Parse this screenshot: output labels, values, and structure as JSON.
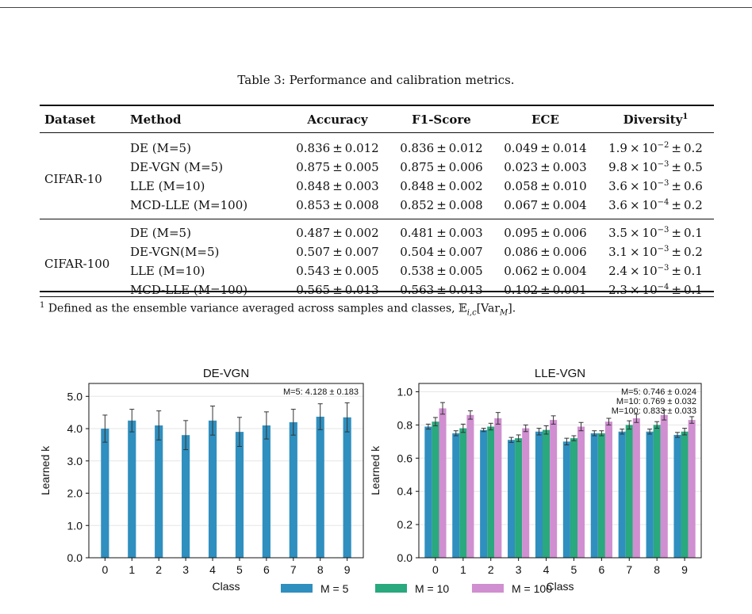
{
  "table": {
    "caption": "Table 3: Performance and calibration metrics.",
    "headers": [
      "Dataset",
      "Method",
      "Accuracy",
      "F1-Score",
      "ECE",
      "Diversity"
    ],
    "header_footnote_mark": "1",
    "groups": [
      {
        "dataset": "CIFAR-10",
        "rows": [
          {
            "method": "DE (M=5)",
            "acc": "0.836",
            "acc_sd": "0.012",
            "f1": "0.836",
            "f1_sd": "0.012",
            "ece": "0.049",
            "ece_sd": "0.014",
            "div_mant": "1.9",
            "div_exp": "−2",
            "div_sd": "0.2"
          },
          {
            "method": "DE-VGN (M=5)",
            "acc": "0.875",
            "acc_sd": "0.005",
            "f1": "0.875",
            "f1_sd": "0.006",
            "ece": "0.023",
            "ece_sd": "0.003",
            "div_mant": "9.8",
            "div_exp": "−3",
            "div_sd": "0.5"
          },
          {
            "method": "LLE (M=10)",
            "acc": "0.848",
            "acc_sd": "0.003",
            "f1": "0.848",
            "f1_sd": "0.002",
            "ece": "0.058",
            "ece_sd": "0.010",
            "div_mant": "3.6",
            "div_exp": "−3",
            "div_sd": "0.6"
          },
          {
            "method": "MCD-LLE (M=100)",
            "acc": "0.853",
            "acc_sd": "0.008",
            "f1": "0.852",
            "f1_sd": "0.008",
            "ece": "0.067",
            "ece_sd": "0.004",
            "div_mant": "3.6",
            "div_exp": "−4",
            "div_sd": "0.2"
          }
        ]
      },
      {
        "dataset": "CIFAR-100",
        "rows": [
          {
            "method": "DE (M=5)",
            "acc": "0.487",
            "acc_sd": "0.002",
            "f1": "0.481",
            "f1_sd": "0.003",
            "ece": "0.095",
            "ece_sd": "0.006",
            "div_mant": "3.5",
            "div_exp": "−3",
            "div_sd": "0.1"
          },
          {
            "method": "DE-VGN(M=5)",
            "acc": "0.507",
            "acc_sd": "0.007",
            "f1": "0.504",
            "f1_sd": "0.007",
            "ece": "0.086",
            "ece_sd": "0.006",
            "div_mant": "3.1",
            "div_exp": "−3",
            "div_sd": "0.2"
          },
          {
            "method": "LLE (M=10)",
            "acc": "0.543",
            "acc_sd": "0.005",
            "f1": "0.538",
            "f1_sd": "0.005",
            "ece": "0.062",
            "ece_sd": "0.004",
            "div_mant": "2.4",
            "div_exp": "−3",
            "div_sd": "0.1"
          },
          {
            "method": "MCD-LLE (M=100)",
            "acc": "0.565",
            "acc_sd": "0.013",
            "f1": "0.563",
            "f1_sd": "0.013",
            "ece": "0.102",
            "ece_sd": "0.001",
            "div_mant": "2.3",
            "div_exp": "−4",
            "div_sd": "0.1"
          }
        ]
      }
    ],
    "footnote_mark": "1",
    "footnote": "Defined as the ensemble variance averaged across samples and classes, 𝔼",
    "footnote_sub": "i,c",
    "footnote_tail": "[Var",
    "footnote_sub2": "M",
    "footnote_end": "]."
  },
  "colors": {
    "m5": "#2f8fbf",
    "m10": "#2aa87e",
    "m100": "#d08fd0"
  },
  "legend": {
    "m5": "M = 5",
    "m10": "M = 10",
    "m100": "M = 100"
  },
  "chart_data": [
    {
      "type": "bar",
      "title": "DE-VGN",
      "xlabel": "Class",
      "ylabel": "Learned k",
      "ylim": [
        0,
        5.4
      ],
      "yticks": [
        "0.0",
        "1.0",
        "2.0",
        "3.0",
        "4.0",
        "5.0"
      ],
      "categories": [
        "0",
        "1",
        "2",
        "3",
        "4",
        "5",
        "6",
        "7",
        "8",
        "9"
      ],
      "series": [
        {
          "name": "M = 5",
          "values": [
            4.0,
            4.25,
            4.1,
            3.8,
            4.25,
            3.9,
            4.1,
            4.2,
            4.37,
            4.35
          ],
          "errors": [
            0.42,
            0.35,
            0.45,
            0.45,
            0.45,
            0.45,
            0.42,
            0.4,
            0.4,
            0.45
          ]
        }
      ],
      "annotation": "M=5: 4.128 ± 0.183"
    },
    {
      "type": "bar",
      "title": "LLE-VGN",
      "xlabel": "Class",
      "ylabel": "Learned k",
      "ylim": [
        0,
        1.05
      ],
      "yticks": [
        "0.0",
        "0.2",
        "0.4",
        "0.6",
        "0.8",
        "1.0"
      ],
      "categories": [
        "0",
        "1",
        "2",
        "3",
        "4",
        "5",
        "6",
        "7",
        "8",
        "9"
      ],
      "series": [
        {
          "name": "M = 5",
          "values": [
            0.79,
            0.75,
            0.77,
            0.71,
            0.76,
            0.7,
            0.75,
            0.76,
            0.76,
            0.74
          ],
          "errors": [
            0.015,
            0.015,
            0.01,
            0.015,
            0.02,
            0.02,
            0.015,
            0.015,
            0.015,
            0.015
          ]
        },
        {
          "name": "M = 10",
          "values": [
            0.82,
            0.78,
            0.79,
            0.72,
            0.77,
            0.72,
            0.75,
            0.8,
            0.8,
            0.76
          ],
          "errors": [
            0.025,
            0.025,
            0.02,
            0.02,
            0.025,
            0.015,
            0.015,
            0.025,
            0.02,
            0.02
          ]
        },
        {
          "name": "M = 100",
          "values": [
            0.9,
            0.86,
            0.84,
            0.78,
            0.83,
            0.79,
            0.82,
            0.84,
            0.86,
            0.83
          ],
          "errors": [
            0.035,
            0.025,
            0.035,
            0.02,
            0.025,
            0.025,
            0.02,
            0.025,
            0.03,
            0.02
          ]
        }
      ],
      "annotation": [
        "M=5: 0.746 ± 0.024",
        "M=10: 0.769 ± 0.032",
        "M=100: 0.833 ± 0.033"
      ]
    }
  ]
}
